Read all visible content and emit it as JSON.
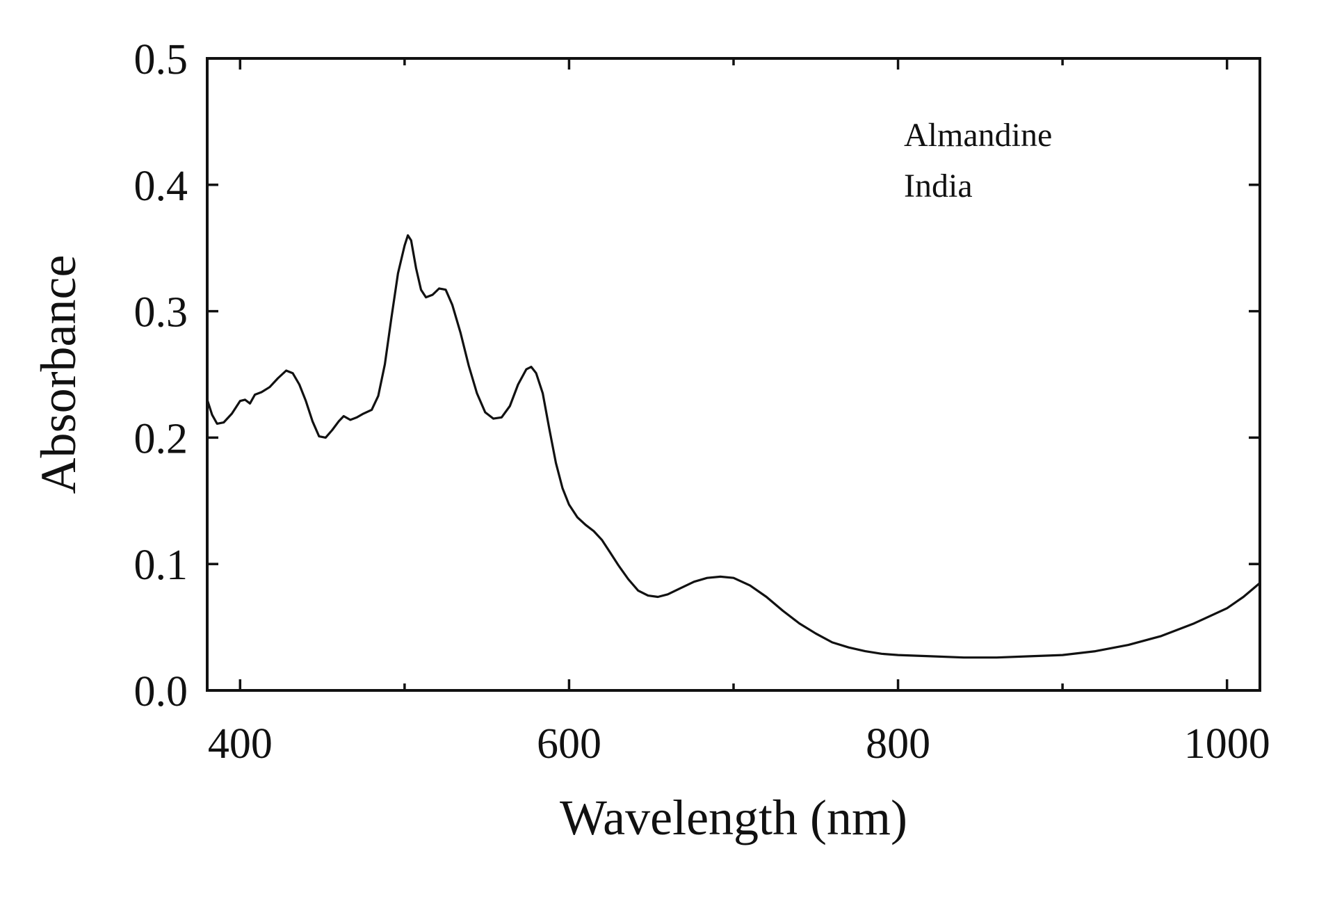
{
  "chart_data": {
    "type": "line",
    "title": "",
    "xlabel": "Wavelength (nm)",
    "ylabel": "Absorbance",
    "xlim": [
      380,
      1020
    ],
    "ylim": [
      0.0,
      0.5
    ],
    "x_ticks": [
      400,
      600,
      800,
      1000
    ],
    "x_tick_labels": [
      "400",
      "600",
      "800",
      "1000"
    ],
    "x_minor_ticks": [
      500,
      700,
      900
    ],
    "y_ticks": [
      0.0,
      0.1,
      0.2,
      0.3,
      0.4,
      0.5
    ],
    "y_tick_labels": [
      "0.0",
      "0.1",
      "0.2",
      "0.3",
      "0.4",
      "0.5"
    ],
    "grid": false,
    "annotations": [
      "Almandine",
      "India"
    ],
    "series": [
      {
        "color": "#111111",
        "points": [
          [
            380,
            0.23
          ],
          [
            383,
            0.218
          ],
          [
            386,
            0.211
          ],
          [
            390,
            0.212
          ],
          [
            395,
            0.219
          ],
          [
            400,
            0.229
          ],
          [
            403,
            0.23
          ],
          [
            406,
            0.227
          ],
          [
            409,
            0.234
          ],
          [
            413,
            0.236
          ],
          [
            418,
            0.24
          ],
          [
            423,
            0.247
          ],
          [
            428,
            0.253
          ],
          [
            432,
            0.251
          ],
          [
            436,
            0.242
          ],
          [
            440,
            0.229
          ],
          [
            444,
            0.213
          ],
          [
            448,
            0.201
          ],
          [
            452,
            0.2
          ],
          [
            456,
            0.206
          ],
          [
            460,
            0.213
          ],
          [
            463,
            0.217
          ],
          [
            467,
            0.214
          ],
          [
            471,
            0.216
          ],
          [
            475,
            0.219
          ],
          [
            480,
            0.222
          ],
          [
            484,
            0.233
          ],
          [
            488,
            0.258
          ],
          [
            492,
            0.295
          ],
          [
            496,
            0.33
          ],
          [
            500,
            0.352
          ],
          [
            502,
            0.36
          ],
          [
            504,
            0.356
          ],
          [
            507,
            0.334
          ],
          [
            510,
            0.317
          ],
          [
            513,
            0.311
          ],
          [
            517,
            0.313
          ],
          [
            521,
            0.318
          ],
          [
            525,
            0.317
          ],
          [
            529,
            0.305
          ],
          [
            534,
            0.283
          ],
          [
            539,
            0.257
          ],
          [
            544,
            0.235
          ],
          [
            549,
            0.22
          ],
          [
            554,
            0.215
          ],
          [
            559,
            0.216
          ],
          [
            564,
            0.225
          ],
          [
            569,
            0.242
          ],
          [
            574,
            0.254
          ],
          [
            577,
            0.256
          ],
          [
            580,
            0.251
          ],
          [
            584,
            0.235
          ],
          [
            588,
            0.207
          ],
          [
            592,
            0.18
          ],
          [
            596,
            0.16
          ],
          [
            600,
            0.147
          ],
          [
            605,
            0.137
          ],
          [
            610,
            0.131
          ],
          [
            615,
            0.126
          ],
          [
            620,
            0.119
          ],
          [
            625,
            0.109
          ],
          [
            630,
            0.099
          ],
          [
            636,
            0.088
          ],
          [
            642,
            0.079
          ],
          [
            648,
            0.075
          ],
          [
            654,
            0.074
          ],
          [
            660,
            0.076
          ],
          [
            668,
            0.081
          ],
          [
            676,
            0.086
          ],
          [
            684,
            0.089
          ],
          [
            692,
            0.09
          ],
          [
            700,
            0.089
          ],
          [
            710,
            0.083
          ],
          [
            720,
            0.074
          ],
          [
            730,
            0.063
          ],
          [
            740,
            0.053
          ],
          [
            750,
            0.045
          ],
          [
            760,
            0.038
          ],
          [
            770,
            0.034
          ],
          [
            780,
            0.031
          ],
          [
            790,
            0.029
          ],
          [
            800,
            0.028
          ],
          [
            820,
            0.027
          ],
          [
            840,
            0.026
          ],
          [
            860,
            0.026
          ],
          [
            880,
            0.027
          ],
          [
            900,
            0.028
          ],
          [
            920,
            0.031
          ],
          [
            940,
            0.036
          ],
          [
            960,
            0.043
          ],
          [
            980,
            0.053
          ],
          [
            1000,
            0.065
          ],
          [
            1010,
            0.074
          ],
          [
            1020,
            0.085
          ]
        ]
      }
    ]
  }
}
